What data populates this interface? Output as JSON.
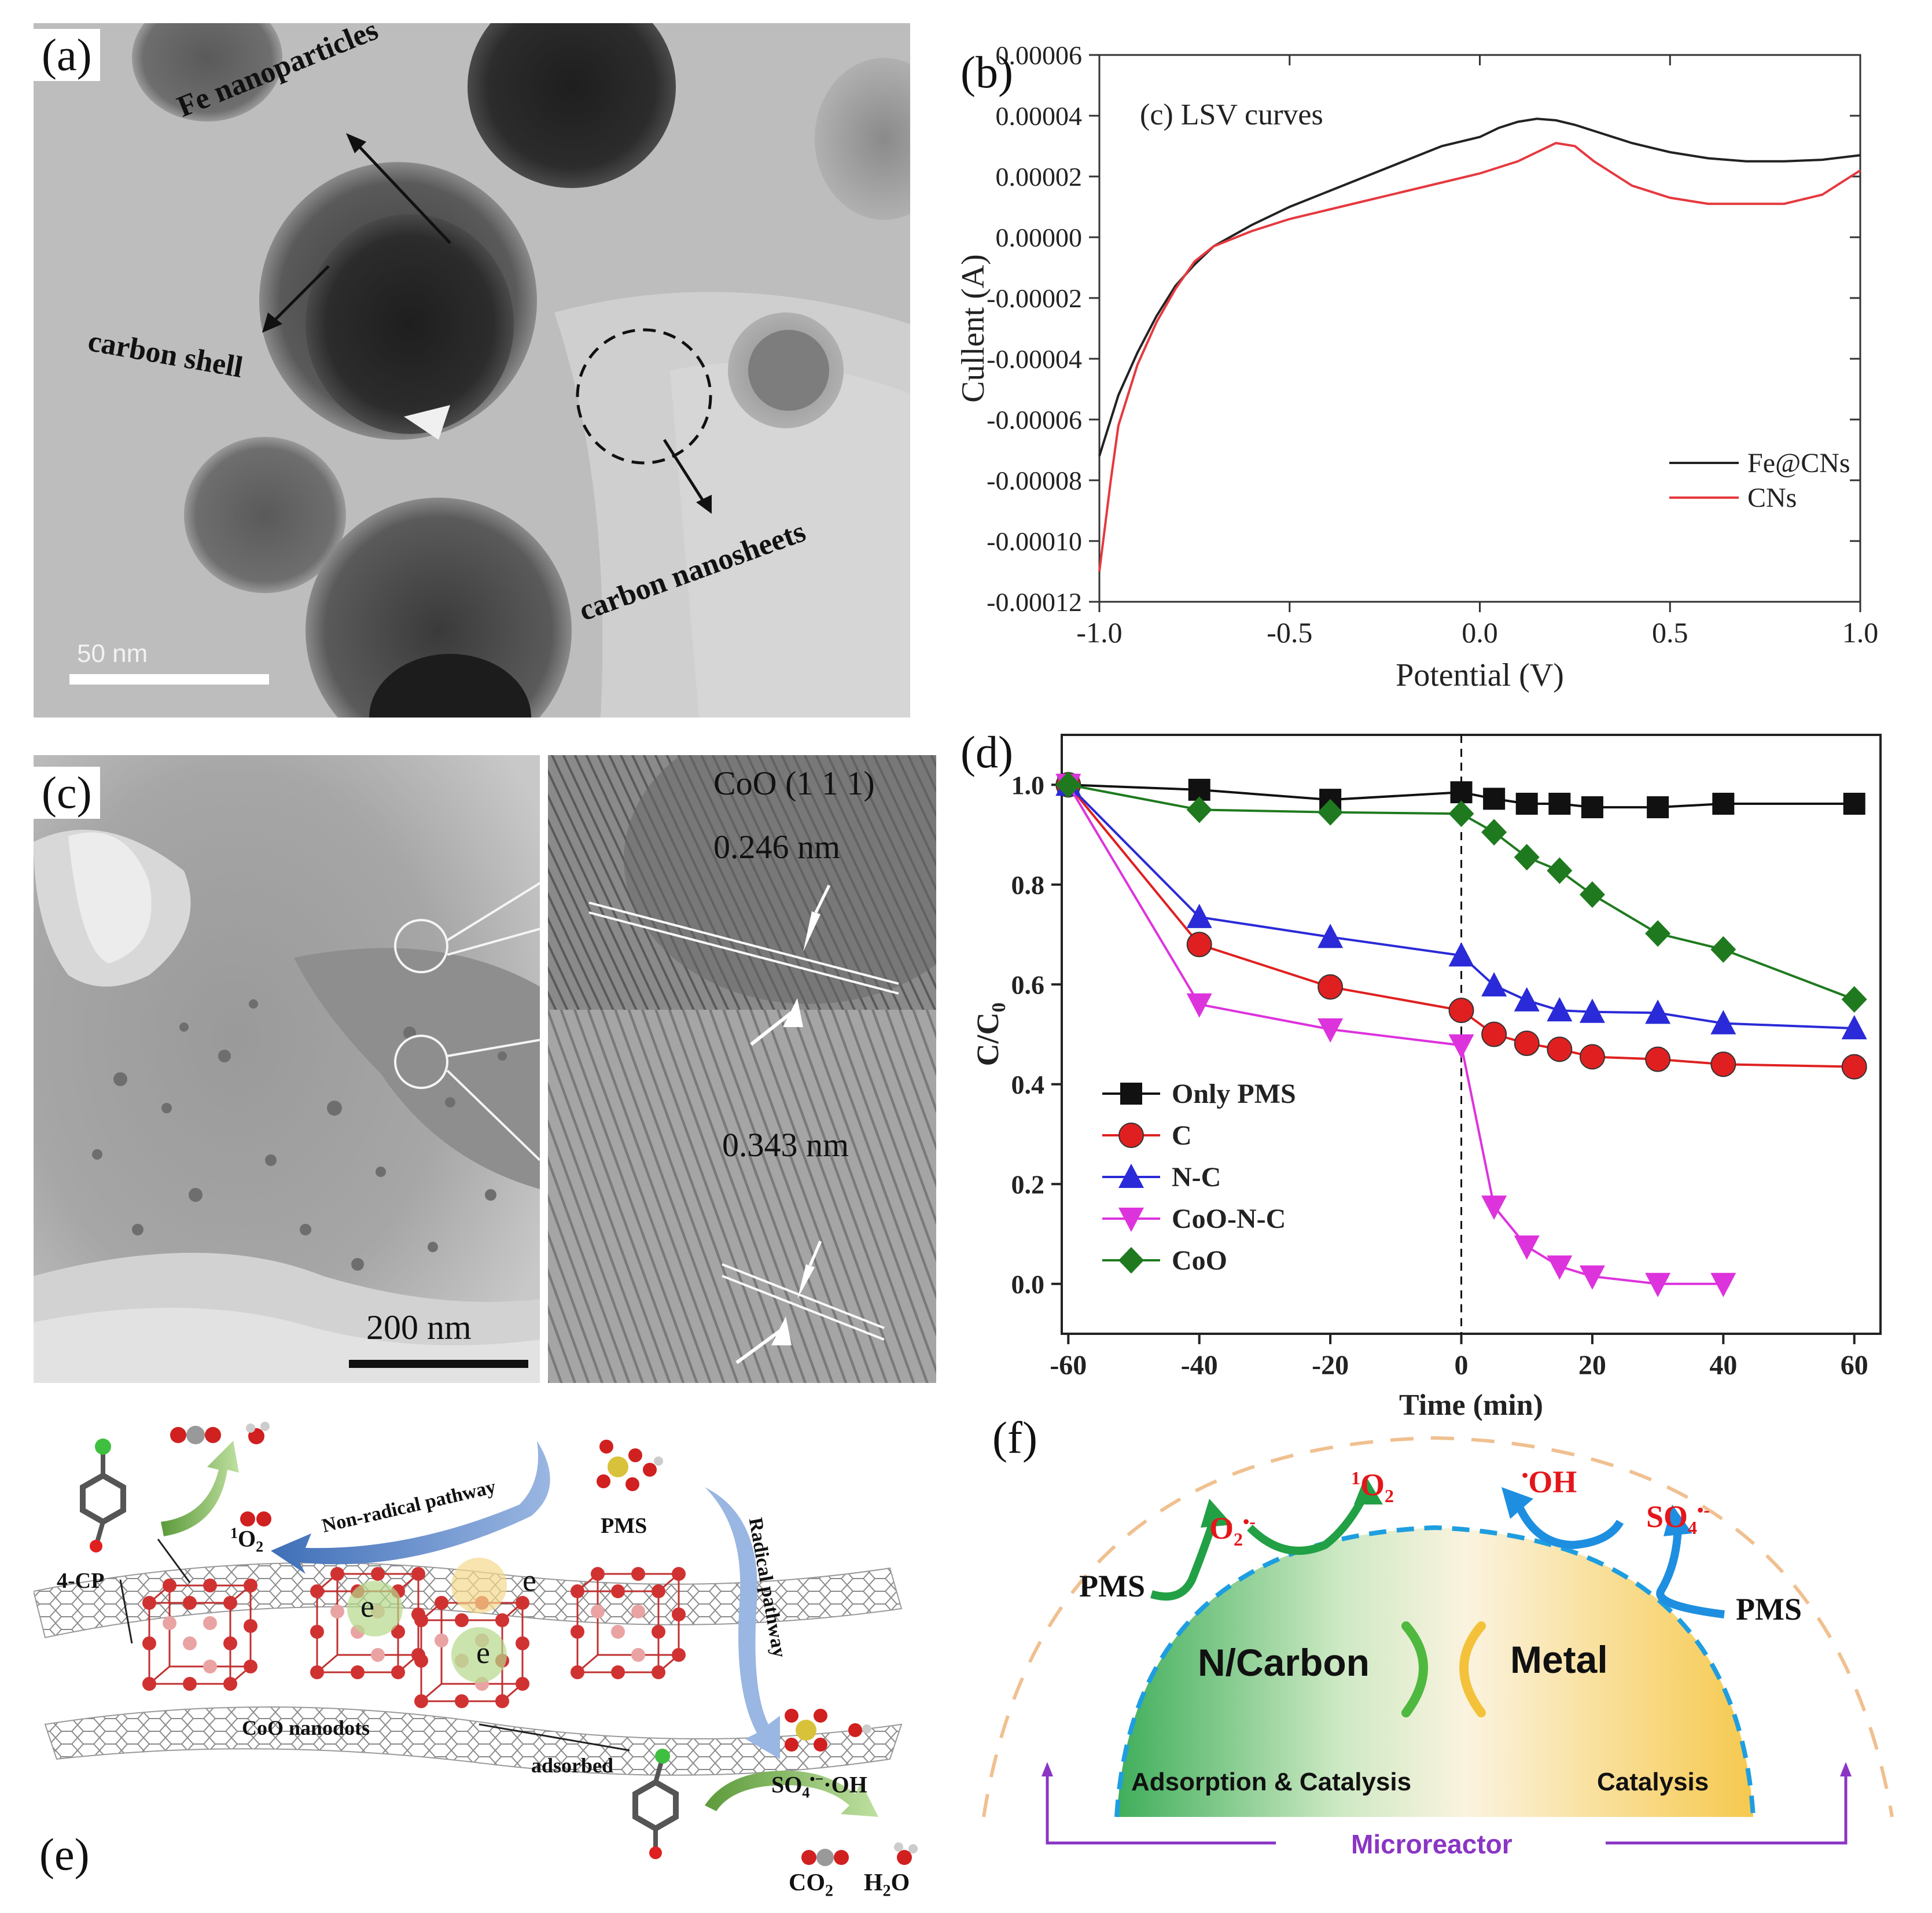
{
  "panel_a": {
    "label": "(a)",
    "annotations": {
      "fe": "Fe nanoparticles",
      "shell": "carbon shell",
      "sheets": "carbon nanosheets"
    },
    "scale_bar": "50 nm"
  },
  "panel_b": {
    "label": "(b)",
    "chart_data": {
      "type": "line",
      "annotation": "(c) LSV curves",
      "xlabel": "Potential (V)",
      "ylabel": "Cullent (A)",
      "xlim": [
        -1.0,
        1.0
      ],
      "ylim": [
        -0.00012,
        6e-05
      ],
      "xticks": [
        "-1.0",
        "-0.5",
        "0.0",
        "0.5",
        "1.0"
      ],
      "yticks": [
        "0.00006",
        "0.00004",
        "0.00002",
        "0.00000",
        "-0.00002",
        "-0.00004",
        "-0.00006",
        "-0.00008",
        "-0.00010",
        "-0.00012"
      ],
      "legend_position": "bottom-right",
      "series": [
        {
          "name": "Fe@CNs",
          "color": "#222222",
          "x": [
            -1.0,
            -0.95,
            -0.9,
            -0.85,
            -0.8,
            -0.75,
            -0.7,
            -0.6,
            -0.5,
            -0.4,
            -0.3,
            -0.2,
            -0.1,
            0.0,
            0.05,
            0.1,
            0.15,
            0.2,
            0.25,
            0.3,
            0.4,
            0.5,
            0.6,
            0.7,
            0.8,
            0.9,
            1.0
          ],
          "y": [
            -7.2e-05,
            -5.2e-05,
            -3.8e-05,
            -2.6e-05,
            -1.6e-05,
            -9e-06,
            -3e-06,
            4e-06,
            1e-05,
            1.5e-05,
            2e-05,
            2.5e-05,
            3e-05,
            3.3e-05,
            3.6e-05,
            3.8e-05,
            3.9e-05,
            3.85e-05,
            3.7e-05,
            3.5e-05,
            3.1e-05,
            2.8e-05,
            2.6e-05,
            2.5e-05,
            2.5e-05,
            2.55e-05,
            2.7e-05
          ]
        },
        {
          "name": "CNs",
          "color": "#e5393f",
          "x": [
            -1.0,
            -0.97,
            -0.95,
            -0.9,
            -0.85,
            -0.8,
            -0.75,
            -0.7,
            -0.6,
            -0.5,
            -0.4,
            -0.3,
            -0.2,
            -0.1,
            0.0,
            0.1,
            0.15,
            0.2,
            0.25,
            0.3,
            0.4,
            0.5,
            0.6,
            0.7,
            0.8,
            0.9,
            1.0
          ],
          "y": [
            -0.00011,
            -8e-05,
            -6.2e-05,
            -4.2e-05,
            -2.8e-05,
            -1.7e-05,
            -8e-06,
            -3e-06,
            2e-06,
            6e-06,
            9e-06,
            1.2e-05,
            1.5e-05,
            1.8e-05,
            2.1e-05,
            2.5e-05,
            2.8e-05,
            3.1e-05,
            3e-05,
            2.5e-05,
            1.7e-05,
            1.3e-05,
            1.1e-05,
            1.1e-05,
            1.1e-05,
            1.4e-05,
            2.2e-05
          ]
        }
      ]
    }
  },
  "panel_c": {
    "label": "(c)",
    "scale_bar": "200 nm",
    "hr_title": "CoO (1 1 1)",
    "d1": "0.246 nm",
    "d2": "0.343 nm"
  },
  "panel_d": {
    "label": "(d)",
    "chart_data": {
      "type": "line",
      "xlabel": "Time (min)",
      "ylabel": "C/C",
      "ylabel_sub": "0",
      "xlim": [
        -61,
        64
      ],
      "ylim": [
        -0.1,
        1.1
      ],
      "xticks": [
        "-60",
        "-40",
        "-20",
        "0",
        "20",
        "40",
        "60"
      ],
      "yticks": [
        "1.0",
        "0.8",
        "0.6",
        "0.4",
        "0.2",
        "0.0"
      ],
      "vline_x": 0,
      "legend_position": "bottom-left",
      "series": [
        {
          "name": "Only PMS",
          "color": "#111111",
          "marker": "square",
          "x": [
            -60,
            -40,
            -20,
            0,
            5,
            10,
            15,
            20,
            30,
            40,
            60
          ],
          "y": [
            1.0,
            0.99,
            0.97,
            0.985,
            0.972,
            0.962,
            0.962,
            0.955,
            0.955,
            0.962,
            0.962
          ]
        },
        {
          "name": "C",
          "color": "#e02020",
          "marker": "circle",
          "x": [
            -60,
            -40,
            -20,
            0,
            5,
            10,
            15,
            20,
            30,
            40,
            60
          ],
          "y": [
            1.0,
            0.68,
            0.595,
            0.548,
            0.5,
            0.482,
            0.47,
            0.455,
            0.45,
            0.44,
            0.435
          ]
        },
        {
          "name": "N-C",
          "color": "#2a2ad8",
          "marker": "triangle-up",
          "x": [
            -60,
            -40,
            -20,
            0,
            5,
            10,
            15,
            20,
            30,
            40,
            60
          ],
          "y": [
            1.0,
            0.735,
            0.695,
            0.658,
            0.598,
            0.568,
            0.548,
            0.545,
            0.543,
            0.522,
            0.512
          ]
        },
        {
          "name": "CoO-N-C",
          "color": "#dd33dd",
          "marker": "triangle-down",
          "x": [
            -60,
            -40,
            -20,
            0,
            5,
            10,
            15,
            20,
            30,
            40
          ],
          "y": [
            1.0,
            0.56,
            0.51,
            0.478,
            0.155,
            0.075,
            0.035,
            0.015,
            0.0,
            0.0
          ]
        },
        {
          "name": "CoO",
          "color": "#1f7a1f",
          "marker": "diamond",
          "x": [
            -60,
            -40,
            -20,
            0,
            5,
            10,
            15,
            20,
            30,
            40,
            60
          ],
          "y": [
            1.0,
            0.95,
            0.945,
            0.942,
            0.905,
            0.855,
            0.828,
            0.78,
            0.702,
            0.67,
            0.57
          ]
        }
      ]
    }
  },
  "panel_e": {
    "label": "(e)",
    "labels": {
      "cp4": "4-CP",
      "singlet": "1",
      "singlet_o": "O",
      "singlet_sub": "2",
      "nonradical": "Non-radical pathway",
      "pms": "PMS",
      "radical": "Radical pathway",
      "electron": "e",
      "nanodots": "CoO nanodots",
      "adsorbed": "adsorbed",
      "so4_oh": "SO",
      "so4_sub": "4",
      "so4_sup": "•−",
      "oh": "·OH",
      "co2": "CO",
      "co2_sub": "2",
      "h2o": "H",
      "h2o_sub": "2",
      "h2o_o": "O"
    }
  },
  "panel_f": {
    "label": "(f)",
    "labels": {
      "o2rad": "O",
      "o2rad_sub": "2",
      "o2rad_sup": "•-",
      "singlet_sup": "1",
      "singlet": "O",
      "singlet_sub": "2",
      "oh_dot": "•",
      "oh": "OH",
      "so4": "SO",
      "so4_sub": "4",
      "so4_sup": "•-",
      "pms_left": "PMS",
      "pms_right": "PMS",
      "n_carbon": "N/Carbon",
      "metal": "Metal",
      "ads_cat": "Adsorption & Catalysis",
      "cat": "Catalysis",
      "microreactor": "Microreactor"
    },
    "colors": {
      "red": "#e4161b",
      "green": "#22a045",
      "blue": "#1e8fe0",
      "purple": "#8a35c4",
      "orange": "#f0c090"
    }
  }
}
